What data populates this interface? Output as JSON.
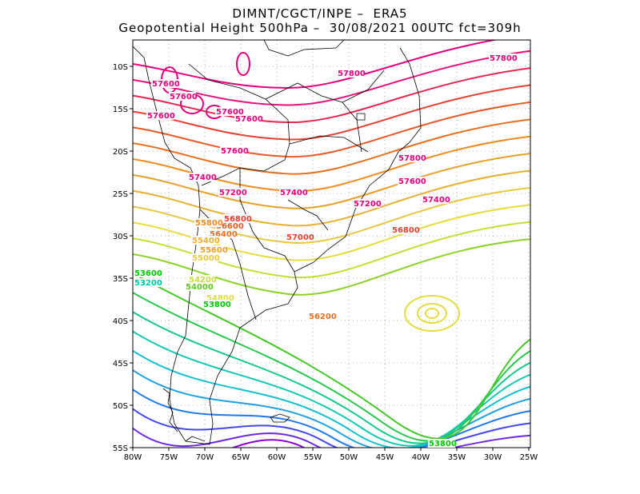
{
  "header": {
    "line1": "DIMNT/CGCT/INPE –  ERA5",
    "line2": "Geopotential Height 500hPa –  30/08/2021 00UTC fct=309h"
  },
  "axes": {
    "lon_labels": [
      "80W",
      "75W",
      "70W",
      "65W",
      "60W",
      "55W",
      "50W",
      "45W",
      "40W",
      "35W",
      "30W",
      "25W"
    ],
    "lat_labels": [
      "10S",
      "15S",
      "20S",
      "25S",
      "30S",
      "35S",
      "40S",
      "45S",
      "50S",
      "55S"
    ]
  },
  "contour_labels": [
    {
      "text": "57800",
      "color": "#e6007e"
    },
    {
      "text": "57800",
      "color": "#e6007e"
    },
    {
      "text": "57800",
      "color": "#e6007e"
    },
    {
      "text": "57600",
      "color": "#e6007e"
    },
    {
      "text": "57600",
      "color": "#e6007e"
    },
    {
      "text": "57600",
      "color": "#e6007e"
    },
    {
      "text": "57600",
      "color": "#e6007e"
    },
    {
      "text": "57600",
      "color": "#e6007e"
    },
    {
      "text": "57600",
      "color": "#e6007e"
    },
    {
      "text": "57600",
      "color": "#e6007e"
    },
    {
      "text": "57400",
      "color": "#e6007e"
    },
    {
      "text": "57400",
      "color": "#e6007e"
    },
    {
      "text": "57400",
      "color": "#e6007e"
    },
    {
      "text": "57200",
      "color": "#e6007e"
    },
    {
      "text": "57200",
      "color": "#e6007e"
    },
    {
      "text": "57000",
      "color": "#e84030"
    },
    {
      "text": "56800",
      "color": "#e84030"
    },
    {
      "text": "56800",
      "color": "#e84030"
    },
    {
      "text": "56600",
      "color": "#e85a28"
    },
    {
      "text": "56400",
      "color": "#e87020"
    },
    {
      "text": "56200",
      "color": "#e87020"
    },
    {
      "text": "55800",
      "color": "#f08c1e"
    },
    {
      "text": "55600",
      "color": "#e8a028"
    },
    {
      "text": "55400",
      "color": "#e8b030"
    },
    {
      "text": "55000",
      "color": "#e8c840"
    },
    {
      "text": "54800",
      "color": "#dcdc3c"
    },
    {
      "text": "54200",
      "color": "#c8dc3c"
    },
    {
      "text": "54000",
      "color": "#64c828"
    },
    {
      "text": "53800",
      "color": "#00c800"
    },
    {
      "text": "53800",
      "color": "#00c800"
    },
    {
      "text": "53600",
      "color": "#00c800"
    },
    {
      "text": "53200",
      "color": "#00c8a0"
    }
  ],
  "contour_colors": [
    "#8c00dc",
    "#6e28e6",
    "#4646f0",
    "#1e78f0",
    "#1ea0e6",
    "#14c0d2",
    "#14c8b4",
    "#14c88c",
    "#28c850",
    "#46c828",
    "#8cd228",
    "#c8dc32",
    "#e6dc3c",
    "#e8c840",
    "#e8b030",
    "#e8a028",
    "#f08c1e",
    "#e87020",
    "#e85a28",
    "#e84030",
    "#e62850",
    "#e6147a",
    "#e6007e"
  ]
}
